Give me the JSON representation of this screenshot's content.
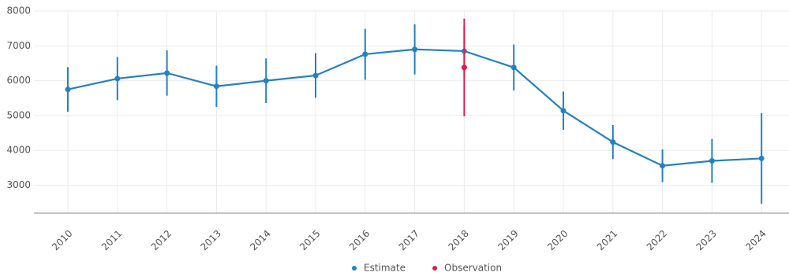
{
  "chart_data": {
    "type": "line",
    "categories": [
      "2010",
      "2011",
      "2012",
      "2013",
      "2014",
      "2015",
      "2016",
      "2017",
      "2018",
      "2019",
      "2020",
      "2021",
      "2022",
      "2023",
      "2024"
    ],
    "ylim": [
      2200,
      8000
    ],
    "yticks": [
      3000,
      4000,
      5000,
      6000,
      7000,
      8000
    ],
    "grid": true,
    "legend": "bottom",
    "series": [
      {
        "name": "Estimate",
        "color": "#2481c3",
        "values": [
          5750,
          6060,
          6220,
          5840,
          6000,
          6150,
          6760,
          6900,
          6850,
          6380,
          5140,
          4240,
          3560,
          3700,
          3770
        ],
        "errors": [
          640,
          620,
          650,
          590,
          640,
          640,
          730,
          720,
          720,
          660,
          550,
          490,
          470,
          630,
          1300
        ]
      },
      {
        "name": "Observation",
        "color": "#d81f4c",
        "values": [
          null,
          null,
          null,
          null,
          null,
          null,
          null,
          null,
          6380,
          null,
          null,
          null,
          null,
          null,
          null
        ],
        "errors": [
          null,
          null,
          null,
          null,
          null,
          null,
          null,
          null,
          1400,
          null,
          null,
          null,
          null,
          null,
          null
        ]
      }
    ]
  }
}
